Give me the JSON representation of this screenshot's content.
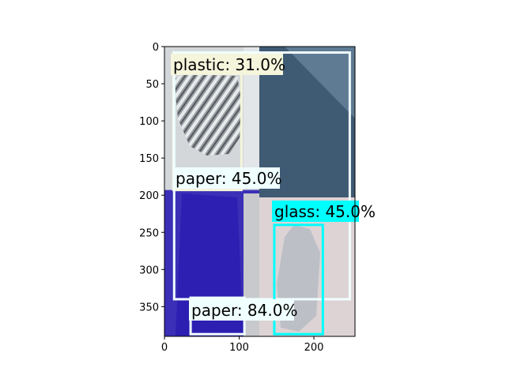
{
  "chart_data": {
    "type": "image-annotations",
    "image_extent": {
      "x": [
        0,
        255
      ],
      "y": [
        0,
        390
      ]
    },
    "x_ticks": [
      0,
      100,
      200
    ],
    "y_ticks": [
      0,
      50,
      100,
      150,
      200,
      250,
      300,
      350
    ],
    "grid": false,
    "photo_regions": [
      {
        "name": "aluminium-foil-photo",
        "x": [
          0,
          127
        ],
        "y": [
          0,
          193
        ],
        "color": "#d4d7d9"
      },
      {
        "name": "blue-box-photo",
        "x": [
          127,
          255
        ],
        "y": [
          0,
          193
        ],
        "color": "#4f6b84"
      },
      {
        "name": "blue-booklet-photo",
        "x": [
          0,
          127
        ],
        "y": [
          193,
          390
        ],
        "color": "#3a2fb6"
      },
      {
        "name": "plastic-wrap-photo",
        "x": [
          127,
          255
        ],
        "y": [
          193,
          390
        ],
        "color": "#ddd3d4"
      }
    ],
    "detections": [
      {
        "label": "plastic: 31.0%",
        "category": "plastic",
        "score": 31.0,
        "box": {
          "x": [
            12,
            103
          ],
          "y": [
            8,
            193
          ]
        },
        "color": "#f5f5dc"
      },
      {
        "label": "paper: 45.0%",
        "category": "paper",
        "score": 45.0,
        "box": {
          "x": [
            13,
            248
          ],
          "y": [
            8,
            340
          ]
        },
        "color": "#f0ffff"
      },
      {
        "label": "glass: 45.0%",
        "category": "glass",
        "score": 45.0,
        "box": {
          "x": [
            147,
            212
          ],
          "y": [
            240,
            387
          ]
        },
        "color": "#00ffff"
      },
      {
        "label": "paper: 84.0%",
        "category": "paper",
        "score": 84.0,
        "box": {
          "x": [
            35,
            107
          ],
          "y": [
            338,
            387
          ]
        },
        "color": "#f0ffff"
      }
    ]
  }
}
